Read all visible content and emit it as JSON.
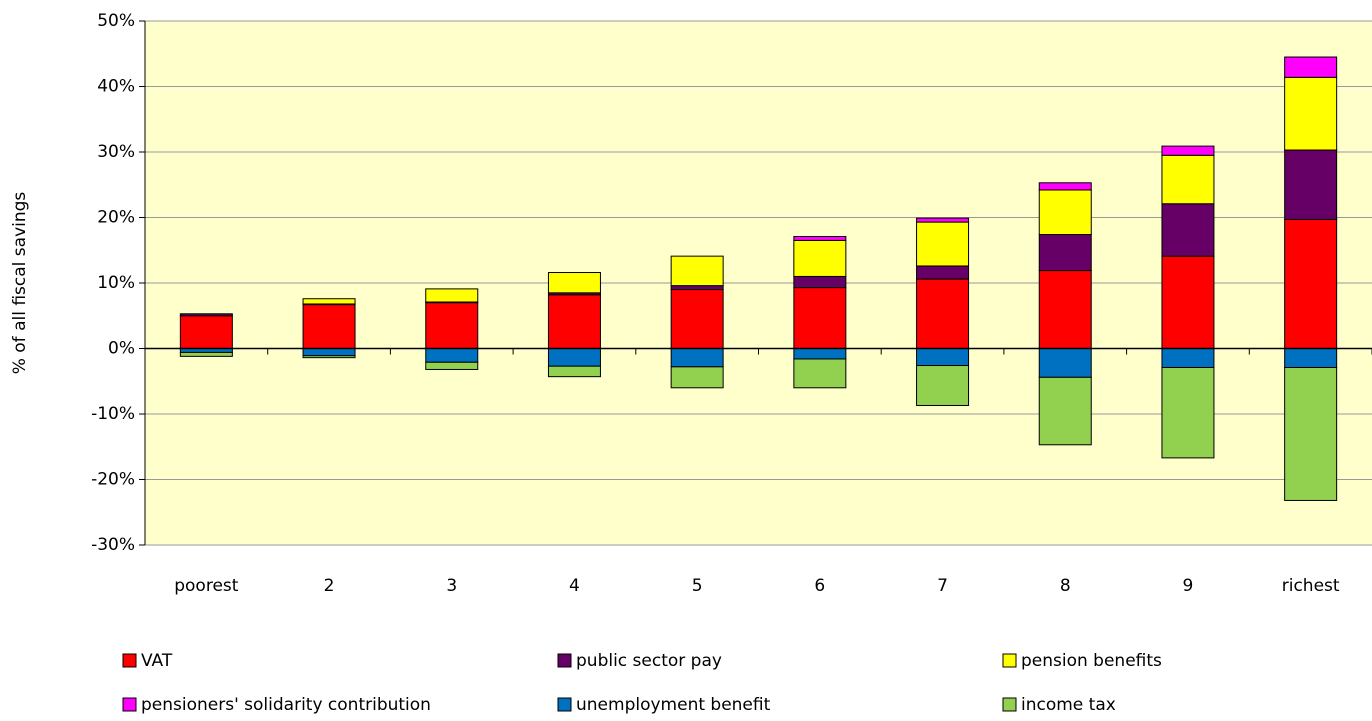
{
  "chart_data": {
    "type": "stacked_bar",
    "y_label": "% of all fiscal savings",
    "categories": [
      "poorest",
      "2",
      "3",
      "4",
      "5",
      "6",
      "7",
      "8",
      "9",
      "richest"
    ],
    "series": [
      {
        "name": "VAT",
        "color": "#ff0000",
        "values": [
          5.0,
          6.7,
          7.0,
          8.2,
          9.0,
          9.3,
          10.6,
          11.9,
          14.1,
          19.7
        ]
      },
      {
        "name": "public sector pay",
        "color": "#660066",
        "values": [
          0.3,
          0.1,
          0.1,
          0.3,
          0.6,
          1.7,
          2.0,
          5.5,
          8.0,
          10.6
        ]
      },
      {
        "name": "pension benefits",
        "color": "#ffff00",
        "values": [
          0,
          0.8,
          2.0,
          3.1,
          4.5,
          5.5,
          6.7,
          6.8,
          7.4,
          11.1
        ]
      },
      {
        "name": "pensioners' solidarity contribution",
        "color": "#ff00ff",
        "values": [
          0,
          0,
          0,
          0,
          0,
          0.6,
          0.6,
          1.1,
          1.4,
          3.1
        ]
      },
      {
        "name": "unemployment benefit",
        "color": "#0070c0",
        "values": [
          -0.6,
          -1.1,
          -2.1,
          -2.7,
          -2.8,
          -1.6,
          -2.6,
          -4.4,
          -2.9,
          -2.9
        ]
      },
      {
        "name": "income tax",
        "color": "#92d050",
        "values": [
          -0.6,
          -0.3,
          -1.1,
          -1.6,
          -3.2,
          -4.4,
          -6.1,
          -10.3,
          -13.8,
          -20.3
        ]
      }
    ],
    "ylim": [
      -30,
      50
    ],
    "yticks": [
      {
        "value": -30,
        "label": "-30%"
      },
      {
        "value": -20,
        "label": "-20%"
      },
      {
        "value": -10,
        "label": "-10%"
      },
      {
        "value": 0,
        "label": "0%"
      },
      {
        "value": 10,
        "label": "10%"
      },
      {
        "value": 20,
        "label": "20%"
      },
      {
        "value": 30,
        "label": "30%"
      },
      {
        "value": 40,
        "label": "40%"
      },
      {
        "value": 50,
        "label": "50%"
      }
    ],
    "grid": true,
    "plot_background": "#ffffcc",
    "legend": "bottom"
  }
}
